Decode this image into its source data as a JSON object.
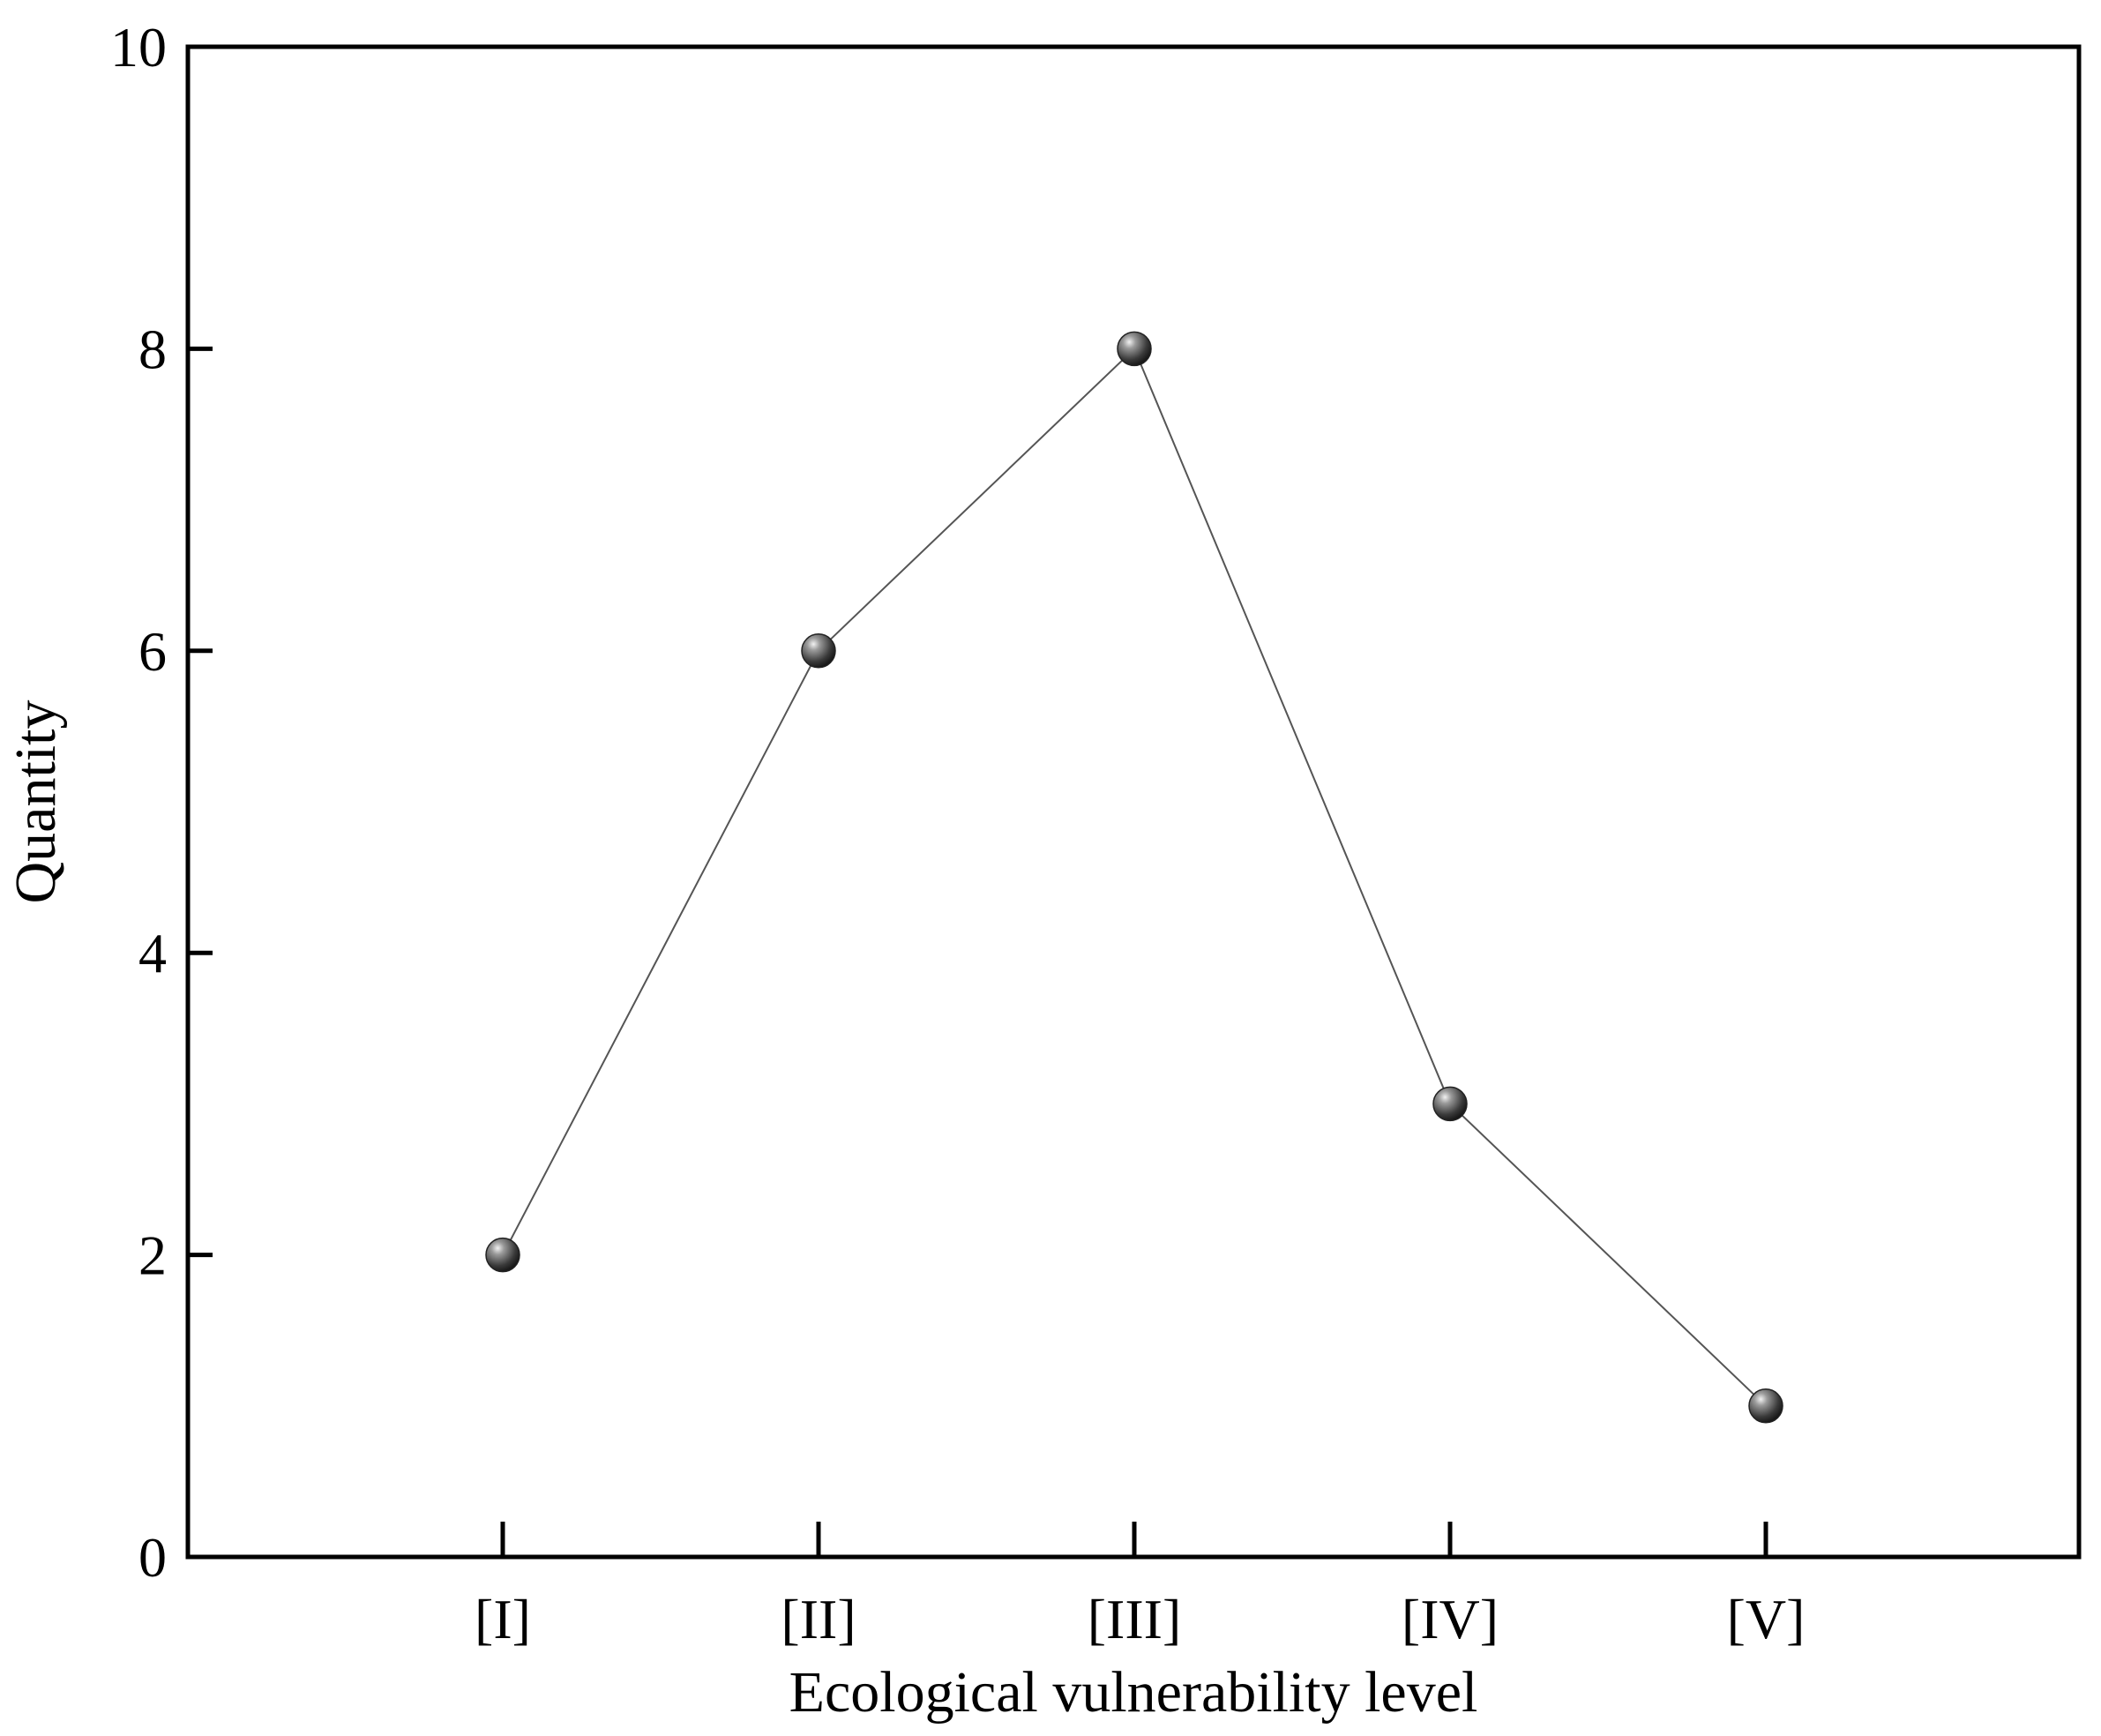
{
  "chart_data": {
    "type": "line",
    "title": "",
    "xlabel": "Ecological vulnerability level",
    "ylabel": "Quantity",
    "categories": [
      "[I]",
      "[II]",
      "[III]",
      "[IV]",
      "[V]"
    ],
    "series": [
      {
        "values": [
          2,
          6,
          8,
          3,
          1
        ]
      }
    ],
    "ylim": [
      0,
      10
    ],
    "yticks": [
      "0",
      "2",
      "4",
      "6",
      "8",
      "10"
    ],
    "grid": false,
    "legend": "none",
    "colors": {
      "line": "#555555",
      "marker": "#4a4a4a",
      "axis": "#000000"
    }
  }
}
